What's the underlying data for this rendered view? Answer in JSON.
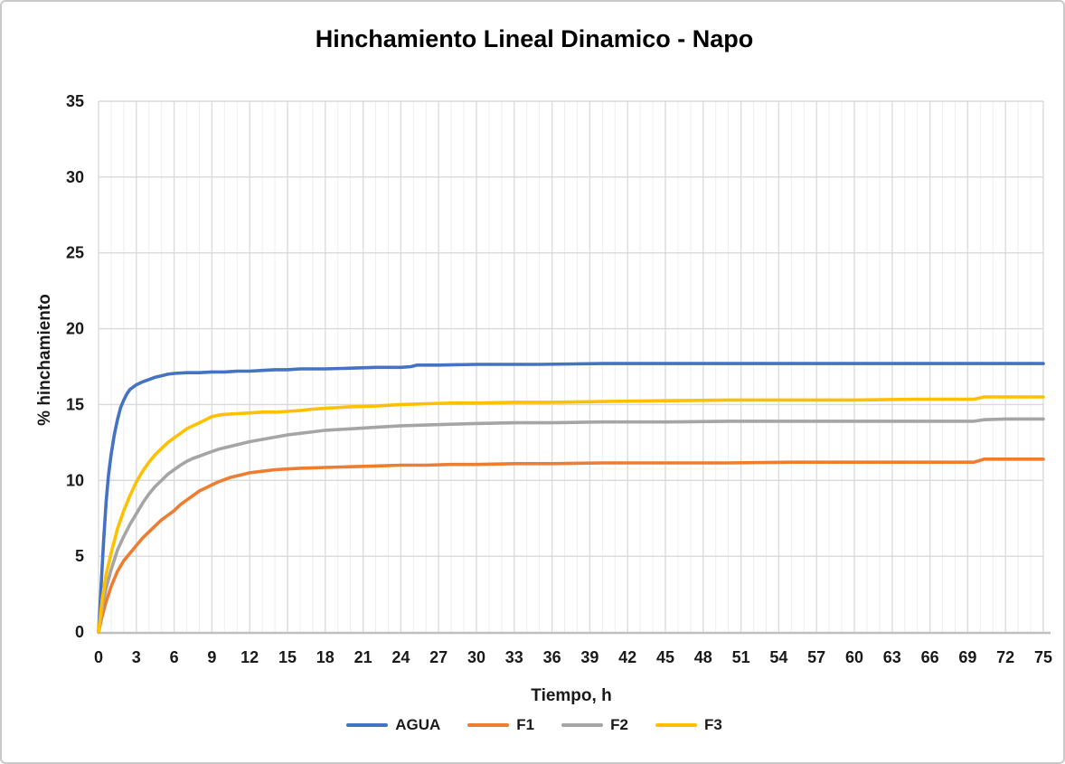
{
  "chart_data": {
    "type": "line",
    "title": "Hinchamiento Lineal Dinamico - Napo",
    "xlabel": "Tiempo, h",
    "ylabel": "% hinchamiento",
    "xlim": [
      0,
      75
    ],
    "ylim": [
      0,
      35
    ],
    "x_ticks": [
      0,
      3,
      6,
      9,
      12,
      15,
      18,
      21,
      24,
      27,
      30,
      33,
      36,
      39,
      42,
      45,
      48,
      51,
      54,
      57,
      60,
      63,
      66,
      69,
      72,
      75
    ],
    "y_ticks": [
      0,
      5,
      10,
      15,
      20,
      25,
      30,
      35
    ],
    "x_minor_step": 1,
    "grid": true,
    "legend_position": "bottom",
    "grid_minor_color": "#eeeeee",
    "grid_major_color": "#dcdcdc",
    "grid_h_color": "#d9d9d9",
    "axis_color": "#bfbfbf",
    "series": [
      {
        "name": "AGUA",
        "color": "#4472C4",
        "points": [
          [
            0,
            0
          ],
          [
            0.2,
            3
          ],
          [
            0.4,
            6
          ],
          [
            0.6,
            8.6
          ],
          [
            0.8,
            10.4
          ],
          [
            1,
            11.7
          ],
          [
            1.25,
            13
          ],
          [
            1.5,
            14
          ],
          [
            1.75,
            14.8
          ],
          [
            2,
            15.3
          ],
          [
            2.25,
            15.7
          ],
          [
            2.5,
            16
          ],
          [
            3,
            16.3
          ],
          [
            3.5,
            16.5
          ],
          [
            4,
            16.65
          ],
          [
            4.5,
            16.8
          ],
          [
            5,
            16.9
          ],
          [
            5.5,
            17
          ],
          [
            6,
            17.05
          ],
          [
            7,
            17.1
          ],
          [
            8,
            17.1
          ],
          [
            9,
            17.15
          ],
          [
            10,
            17.15
          ],
          [
            11,
            17.2
          ],
          [
            12,
            17.2
          ],
          [
            13,
            17.25
          ],
          [
            14,
            17.3
          ],
          [
            15,
            17.3
          ],
          [
            16,
            17.35
          ],
          [
            18,
            17.35
          ],
          [
            20,
            17.4
          ],
          [
            22,
            17.45
          ],
          [
            24,
            17.45
          ],
          [
            24.8,
            17.5
          ],
          [
            25.3,
            17.6
          ],
          [
            27,
            17.6
          ],
          [
            30,
            17.65
          ],
          [
            35,
            17.65
          ],
          [
            40,
            17.7
          ],
          [
            45,
            17.7
          ],
          [
            50,
            17.7
          ],
          [
            55,
            17.7
          ],
          [
            60,
            17.7
          ],
          [
            65,
            17.7
          ],
          [
            70,
            17.7
          ],
          [
            75,
            17.7
          ]
        ]
      },
      {
        "name": "F1",
        "color": "#ED7D31",
        "points": [
          [
            0,
            0
          ],
          [
            0.3,
            1.1
          ],
          [
            0.6,
            2
          ],
          [
            1,
            3
          ],
          [
            1.5,
            4
          ],
          [
            2,
            4.7
          ],
          [
            2.5,
            5.2
          ],
          [
            3,
            5.7
          ],
          [
            3.5,
            6.2
          ],
          [
            4,
            6.6
          ],
          [
            4.5,
            7
          ],
          [
            5,
            7.4
          ],
          [
            5.5,
            7.7
          ],
          [
            6,
            8
          ],
          [
            6.5,
            8.4
          ],
          [
            7,
            8.7
          ],
          [
            7.5,
            9
          ],
          [
            8,
            9.3
          ],
          [
            8.5,
            9.5
          ],
          [
            9,
            9.7
          ],
          [
            9.5,
            9.9
          ],
          [
            10,
            10.05
          ],
          [
            10.5,
            10.2
          ],
          [
            11,
            10.3
          ],
          [
            11.5,
            10.4
          ],
          [
            12,
            10.5
          ],
          [
            13,
            10.6
          ],
          [
            14,
            10.7
          ],
          [
            15,
            10.75
          ],
          [
            16,
            10.8
          ],
          [
            18,
            10.85
          ],
          [
            20,
            10.9
          ],
          [
            22,
            10.95
          ],
          [
            24,
            11
          ],
          [
            26,
            11
          ],
          [
            28,
            11.05
          ],
          [
            30,
            11.05
          ],
          [
            33,
            11.1
          ],
          [
            36,
            11.1
          ],
          [
            40,
            11.15
          ],
          [
            45,
            11.15
          ],
          [
            50,
            11.15
          ],
          [
            55,
            11.2
          ],
          [
            60,
            11.2
          ],
          [
            65,
            11.2
          ],
          [
            69.5,
            11.2
          ],
          [
            70.3,
            11.4
          ],
          [
            72,
            11.4
          ],
          [
            75,
            11.4
          ]
        ]
      },
      {
        "name": "F2",
        "color": "#A5A5A5",
        "points": [
          [
            0,
            0
          ],
          [
            0.3,
            1.7
          ],
          [
            0.6,
            2.9
          ],
          [
            1,
            4.1
          ],
          [
            1.5,
            5.4
          ],
          [
            2,
            6.3
          ],
          [
            2.5,
            7.1
          ],
          [
            3,
            7.8
          ],
          [
            3.5,
            8.5
          ],
          [
            4,
            9.1
          ],
          [
            4.5,
            9.6
          ],
          [
            5,
            10
          ],
          [
            5.5,
            10.4
          ],
          [
            6,
            10.7
          ],
          [
            6.5,
            11
          ],
          [
            7,
            11.25
          ],
          [
            7.5,
            11.45
          ],
          [
            8,
            11.6
          ],
          [
            8.5,
            11.75
          ],
          [
            9,
            11.9
          ],
          [
            9.5,
            12.05
          ],
          [
            10,
            12.15
          ],
          [
            11,
            12.35
          ],
          [
            12,
            12.55
          ],
          [
            13,
            12.7
          ],
          [
            14,
            12.85
          ],
          [
            15,
            13
          ],
          [
            16,
            13.1
          ],
          [
            17,
            13.2
          ],
          [
            18,
            13.3
          ],
          [
            20,
            13.4
          ],
          [
            22,
            13.5
          ],
          [
            24,
            13.6
          ],
          [
            26,
            13.65
          ],
          [
            28,
            13.7
          ],
          [
            30,
            13.75
          ],
          [
            33,
            13.8
          ],
          [
            36,
            13.8
          ],
          [
            40,
            13.85
          ],
          [
            45,
            13.85
          ],
          [
            50,
            13.9
          ],
          [
            55,
            13.9
          ],
          [
            60,
            13.9
          ],
          [
            65,
            13.9
          ],
          [
            69.5,
            13.9
          ],
          [
            70.3,
            14
          ],
          [
            72,
            14.05
          ],
          [
            75,
            14.05
          ]
        ]
      },
      {
        "name": "F3",
        "color": "#FFC000",
        "points": [
          [
            0,
            0
          ],
          [
            0.3,
            2.2
          ],
          [
            0.6,
            3.8
          ],
          [
            1,
            5.2
          ],
          [
            1.5,
            6.8
          ],
          [
            2,
            8
          ],
          [
            2.5,
            9
          ],
          [
            3,
            9.9
          ],
          [
            3.5,
            10.6
          ],
          [
            4,
            11.2
          ],
          [
            4.5,
            11.7
          ],
          [
            5,
            12.1
          ],
          [
            5.5,
            12.5
          ],
          [
            6,
            12.8
          ],
          [
            6.5,
            13.1
          ],
          [
            7,
            13.4
          ],
          [
            7.5,
            13.6
          ],
          [
            8,
            13.8
          ],
          [
            8.5,
            14
          ],
          [
            9,
            14.2
          ],
          [
            9.5,
            14.3
          ],
          [
            10,
            14.35
          ],
          [
            11,
            14.4
          ],
          [
            12,
            14.45
          ],
          [
            13,
            14.5
          ],
          [
            14,
            14.5
          ],
          [
            15,
            14.55
          ],
          [
            16,
            14.6
          ],
          [
            17,
            14.7
          ],
          [
            18,
            14.75
          ],
          [
            20,
            14.85
          ],
          [
            22,
            14.9
          ],
          [
            24,
            15
          ],
          [
            26,
            15.05
          ],
          [
            28,
            15.1
          ],
          [
            30,
            15.1
          ],
          [
            33,
            15.15
          ],
          [
            36,
            15.15
          ],
          [
            40,
            15.2
          ],
          [
            45,
            15.25
          ],
          [
            50,
            15.3
          ],
          [
            55,
            15.3
          ],
          [
            60,
            15.3
          ],
          [
            65,
            15.35
          ],
          [
            69.5,
            15.35
          ],
          [
            70.3,
            15.5
          ],
          [
            72,
            15.5
          ],
          [
            75,
            15.5
          ]
        ]
      }
    ]
  }
}
